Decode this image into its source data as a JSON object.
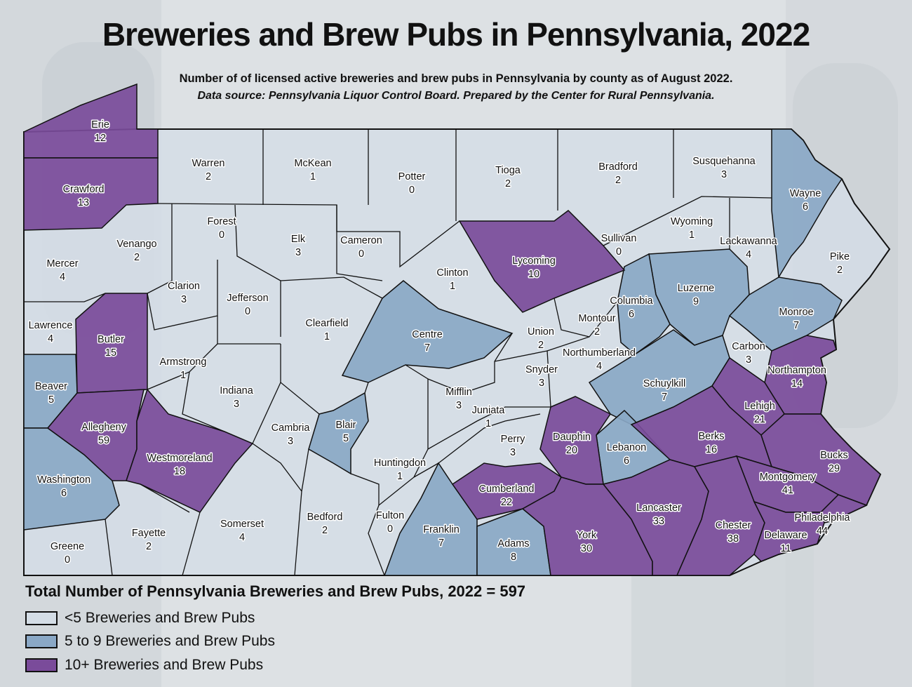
{
  "title": "Breweries and Brew Pubs in Pennsylvania, 2022",
  "subtitle": "Number of of licensed active breweries and brew pubs in Pennsylvania by county as of August 2022.",
  "source": "Data source: Pennsylvania Liquor Control Board. Prepared by the Center for Rural Pennsylvania.",
  "total_label": "Total Number of Pennsylvania Breweries and Brew Pubs, 2022 = 597",
  "colors": {
    "low": "#d4dde6",
    "mid": "#8aa8c6",
    "high": "#7a4b9a",
    "border": "#111111"
  },
  "legend": [
    {
      "label": "<5 Breweries and Brew Pubs",
      "tier": "low"
    },
    {
      "label": "5 to 9 Breweries and Brew Pubs",
      "tier": "mid"
    },
    {
      "label": "10+ Breweries and Brew Pubs",
      "tier": "high"
    }
  ],
  "counties": [
    {
      "name": "Erie",
      "value": "12"
    },
    {
      "name": "Warren",
      "value": "2"
    },
    {
      "name": "McKean",
      "value": "1"
    },
    {
      "name": "Potter",
      "value": "0"
    },
    {
      "name": "Tioga",
      "value": "2"
    },
    {
      "name": "Bradford",
      "value": "2"
    },
    {
      "name": "Susquehanna",
      "value": "3"
    },
    {
      "name": "Wayne",
      "value": "6"
    },
    {
      "name": "Crawford",
      "value": "13"
    },
    {
      "name": "Forest",
      "value": "0"
    },
    {
      "name": "Elk",
      "value": "3"
    },
    {
      "name": "Cameron",
      "value": "0"
    },
    {
      "name": "Lycoming",
      "value": "10"
    },
    {
      "name": "Sullivan",
      "value": "0"
    },
    {
      "name": "Wyoming",
      "value": "1"
    },
    {
      "name": "Lackawanna",
      "value": "4"
    },
    {
      "name": "Pike",
      "value": "2"
    },
    {
      "name": "Mercer",
      "value": "4"
    },
    {
      "name": "Venango",
      "value": "2"
    },
    {
      "name": "Clarion",
      "value": "3"
    },
    {
      "name": "Jefferson",
      "value": "0"
    },
    {
      "name": "Clinton",
      "value": "1"
    },
    {
      "name": "Columbia",
      "value": "6"
    },
    {
      "name": "Luzerne",
      "value": "9"
    },
    {
      "name": "Monroe",
      "value": "7"
    },
    {
      "name": "Lawrence",
      "value": "4"
    },
    {
      "name": "Butler",
      "value": "15"
    },
    {
      "name": "Clearfield",
      "value": "1"
    },
    {
      "name": "Centre",
      "value": "7"
    },
    {
      "name": "Union",
      "value": "2"
    },
    {
      "name": "Montour",
      "value": "2"
    },
    {
      "name": "Northumberland",
      "value": "4"
    },
    {
      "name": "Carbon",
      "value": "3"
    },
    {
      "name": "Northampton",
      "value": "14"
    },
    {
      "name": "Beaver",
      "value": "5"
    },
    {
      "name": "Armstrong",
      "value": "1"
    },
    {
      "name": "Indiana",
      "value": "3"
    },
    {
      "name": "Snyder",
      "value": "3"
    },
    {
      "name": "Schuylkill",
      "value": "7"
    },
    {
      "name": "Mifflin",
      "value": "3"
    },
    {
      "name": "Juniata",
      "value": "1"
    },
    {
      "name": "Lehigh",
      "value": "21"
    },
    {
      "name": "Allegheny",
      "value": "59"
    },
    {
      "name": "Cambria",
      "value": "3"
    },
    {
      "name": "Blair",
      "value": "5"
    },
    {
      "name": "Westmoreland",
      "value": "18"
    },
    {
      "name": "Perry",
      "value": "3"
    },
    {
      "name": "Dauphin",
      "value": "20"
    },
    {
      "name": "Berks",
      "value": "16"
    },
    {
      "name": "Lebanon",
      "value": "6"
    },
    {
      "name": "Bucks",
      "value": "29"
    },
    {
      "name": "Huntingdon",
      "value": "1"
    },
    {
      "name": "Washington",
      "value": "6"
    },
    {
      "name": "Cumberland",
      "value": "22"
    },
    {
      "name": "Montgomery",
      "value": "41"
    },
    {
      "name": "Lancaster",
      "value": "33"
    },
    {
      "name": "Philadelphia",
      "value": "44"
    },
    {
      "name": "Somerset",
      "value": "4"
    },
    {
      "name": "Bedford",
      "value": "2"
    },
    {
      "name": "Fulton",
      "value": "0"
    },
    {
      "name": "Franklin",
      "value": "7"
    },
    {
      "name": "Adams",
      "value": "8"
    },
    {
      "name": "York",
      "value": "30"
    },
    {
      "name": "Chester",
      "value": "38"
    },
    {
      "name": "Delaware",
      "value": "11"
    },
    {
      "name": "Fayette",
      "value": "2"
    },
    {
      "name": "Greene",
      "value": "0"
    }
  ]
}
